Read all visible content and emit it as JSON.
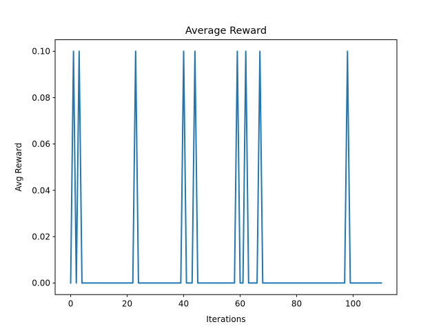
{
  "chart_data": {
    "type": "line",
    "title": "Average Reward",
    "xlabel": "Iterations",
    "ylabel": "Avg Reward",
    "xlim": [
      -5.5,
      115.5
    ],
    "ylim": [
      -0.005,
      0.105
    ],
    "xticks": [
      0,
      20,
      40,
      60,
      80,
      100
    ],
    "xtick_labels": [
      "0",
      "20",
      "40",
      "60",
      "80",
      "100"
    ],
    "yticks": [
      0.0,
      0.02,
      0.04,
      0.06,
      0.08,
      0.1
    ],
    "ytick_labels": [
      "0.00",
      "0.02",
      "0.04",
      "0.06",
      "0.08",
      "0.10"
    ],
    "grid": false,
    "series": [
      {
        "color": "#1f77b4",
        "x": [
          0,
          1,
          2,
          3,
          4,
          5,
          6,
          7,
          8,
          9,
          10,
          11,
          12,
          13,
          14,
          15,
          16,
          17,
          18,
          19,
          20,
          21,
          22,
          23,
          24,
          25,
          26,
          27,
          28,
          29,
          30,
          31,
          32,
          33,
          34,
          35,
          36,
          37,
          38,
          39,
          40,
          41,
          42,
          43,
          44,
          45,
          46,
          47,
          48,
          49,
          50,
          51,
          52,
          53,
          54,
          55,
          56,
          57,
          58,
          59,
          60,
          61,
          62,
          63,
          64,
          65,
          66,
          67,
          68,
          69,
          70,
          71,
          72,
          73,
          74,
          75,
          76,
          77,
          78,
          79,
          80,
          81,
          82,
          83,
          84,
          85,
          86,
          87,
          88,
          89,
          90,
          91,
          92,
          93,
          94,
          95,
          96,
          97,
          98,
          99,
          100,
          101,
          102,
          103,
          104,
          105,
          106,
          107,
          108,
          109,
          110
        ],
        "y": [
          0,
          0.1,
          0,
          0.1,
          0,
          0,
          0,
          0,
          0,
          0,
          0,
          0,
          0,
          0,
          0,
          0,
          0,
          0,
          0,
          0,
          0,
          0,
          0,
          0.1,
          0,
          0,
          0,
          0,
          0,
          0,
          0,
          0,
          0,
          0,
          0,
          0,
          0,
          0,
          0,
          0,
          0.1,
          0,
          0,
          0,
          0.1,
          0,
          0,
          0,
          0,
          0,
          0,
          0,
          0,
          0,
          0,
          0,
          0,
          0,
          0,
          0.1,
          0,
          0,
          0.1,
          0,
          0,
          0,
          0,
          0.1,
          0,
          0,
          0,
          0,
          0,
          0,
          0,
          0,
          0,
          0,
          0,
          0,
          0,
          0,
          0,
          0,
          0,
          0,
          0,
          0,
          0,
          0,
          0,
          0,
          0,
          0,
          0,
          0,
          0,
          0,
          0.1,
          0,
          0,
          0,
          0,
          0,
          0,
          0,
          0,
          0,
          0,
          0,
          0
        ]
      }
    ]
  }
}
